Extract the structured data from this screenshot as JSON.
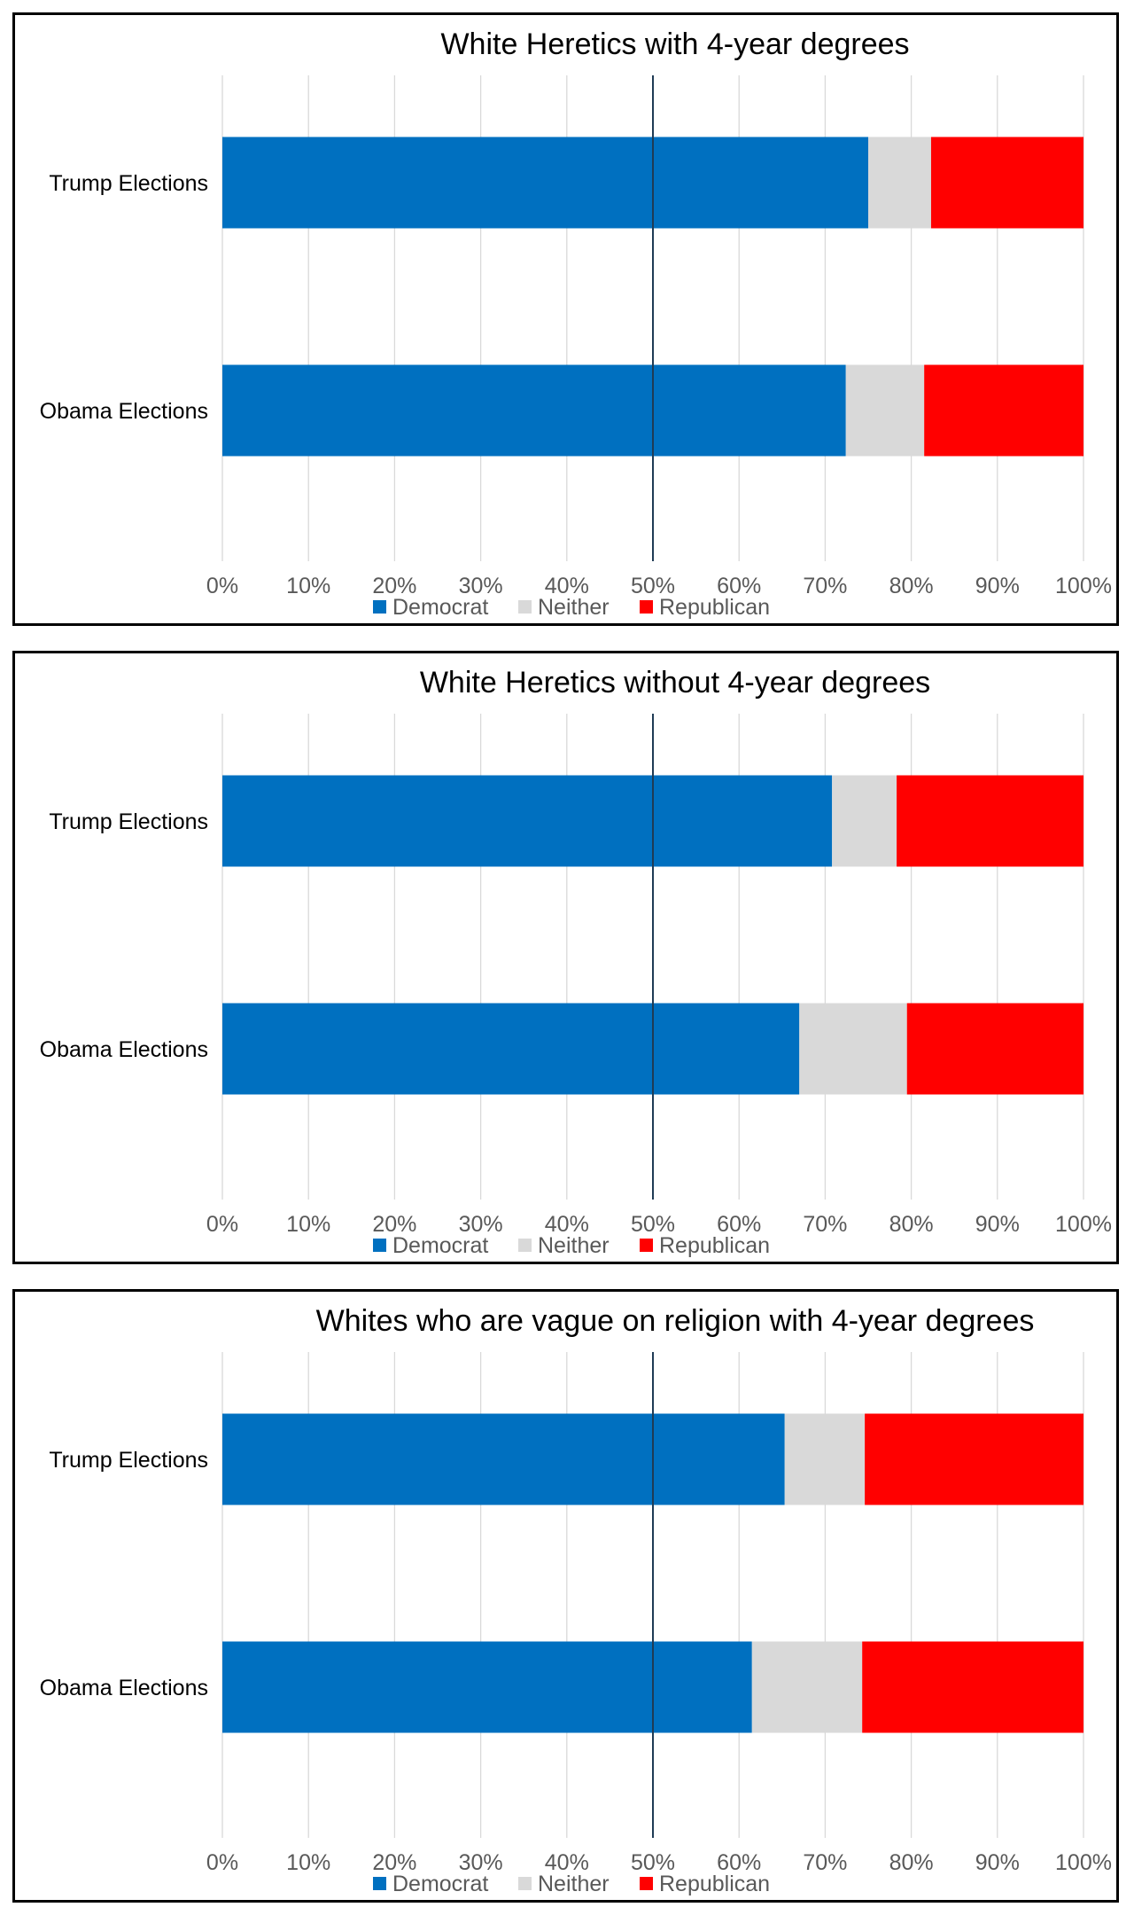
{
  "chart_data": [
    {
      "type": "bar",
      "orientation": "horizontal",
      "stacked": "percent",
      "title": "White Heretics with 4-year degrees",
      "categories": [
        "Trump Elections",
        "Obama Elections"
      ],
      "series": [
        {
          "name": "Democrat",
          "values": [
            75,
            72.4
          ]
        },
        {
          "name": "Neither",
          "values": [
            7.3,
            9.1
          ]
        },
        {
          "name": "Republican",
          "values": [
            17.7,
            18.5
          ]
        }
      ],
      "xlim": [
        0,
        100
      ],
      "xticks": [
        "0%",
        "10%",
        "20%",
        "30%",
        "40%",
        "50%",
        "60%",
        "70%",
        "80%",
        "90%",
        "100%"
      ],
      "reference_line": 50,
      "grid": true,
      "legend": "bottom"
    },
    {
      "type": "bar",
      "orientation": "horizontal",
      "stacked": "percent",
      "title": "White Heretics without 4-year degrees",
      "categories": [
        "Trump Elections",
        "Obama Elections"
      ],
      "series": [
        {
          "name": "Democrat",
          "values": [
            70.8,
            67
          ]
        },
        {
          "name": "Neither",
          "values": [
            7.5,
            12.5
          ]
        },
        {
          "name": "Republican",
          "values": [
            21.7,
            20.5
          ]
        }
      ],
      "xlim": [
        0,
        100
      ],
      "xticks": [
        "0%",
        "10%",
        "20%",
        "30%",
        "40%",
        "50%",
        "60%",
        "70%",
        "80%",
        "90%",
        "100%"
      ],
      "reference_line": 50,
      "grid": true,
      "legend": "bottom"
    },
    {
      "type": "bar",
      "orientation": "horizontal",
      "stacked": "percent",
      "title": "Whites who are vague on religion with 4-year degrees",
      "categories": [
        "Trump Elections",
        "Obama Elections"
      ],
      "series": [
        {
          "name": "Democrat",
          "values": [
            65.3,
            61.5
          ]
        },
        {
          "name": "Neither",
          "values": [
            9.3,
            12.8
          ]
        },
        {
          "name": "Republican",
          "values": [
            25.4,
            25.7
          ]
        }
      ],
      "xlim": [
        0,
        100
      ],
      "xticks": [
        "0%",
        "10%",
        "20%",
        "30%",
        "40%",
        "50%",
        "60%",
        "70%",
        "80%",
        "90%",
        "100%"
      ],
      "reference_line": 50,
      "grid": true,
      "legend": "bottom"
    }
  ],
  "colors": {
    "Democrat": "#0070C0",
    "Neither": "#D9D9D9",
    "Republican": "#FF0000",
    "gridline": "#D9D9D9",
    "reference_line": "#1F3B55"
  }
}
